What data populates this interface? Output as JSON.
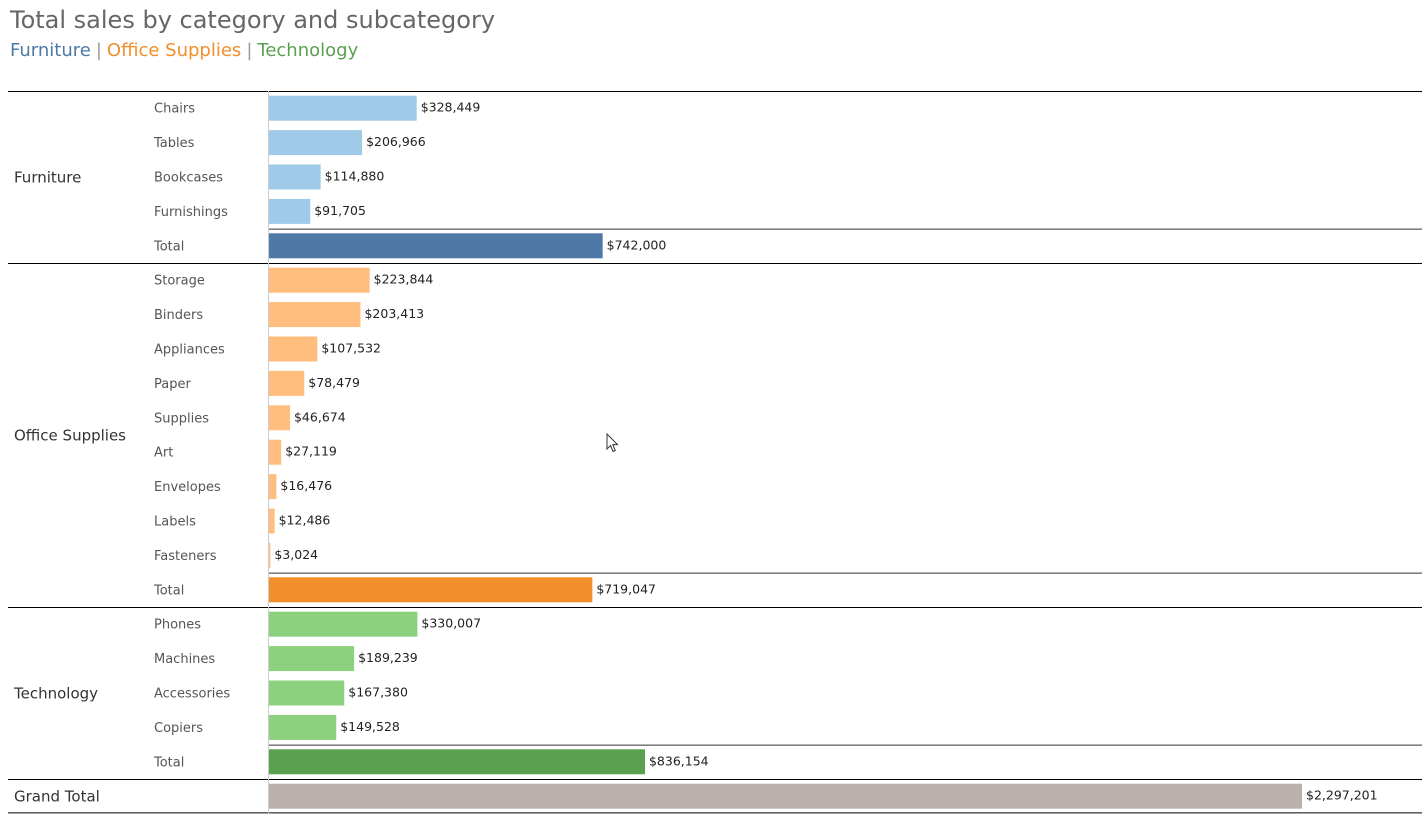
{
  "title": "Total sales by category and subcategory",
  "legend": [
    {
      "label": "Furniture",
      "color": "#4e79a7"
    },
    {
      "label": "Office Supplies",
      "color": "#f28e2b"
    },
    {
      "label": "Technology",
      "color": "#59a14f"
    }
  ],
  "chart_data": {
    "type": "bar",
    "orientation": "horizontal",
    "title": "Total sales by category and subcategory",
    "xlim": [
      0,
      2400000
    ],
    "groups": [
      {
        "category": "Furniture",
        "bar_color": "#a0cbe8",
        "total_color": "#4e79a7",
        "items": [
          {
            "label": "Chairs",
            "value": 328449,
            "value_label": "$328,449"
          },
          {
            "label": "Tables",
            "value": 206966,
            "value_label": "$206,966"
          },
          {
            "label": "Bookcases",
            "value": 114880,
            "value_label": "$114,880"
          },
          {
            "label": "Furnishings",
            "value": 91705,
            "value_label": "$91,705"
          }
        ],
        "total": {
          "label": "Total",
          "value": 742000,
          "value_label": "$742,000"
        }
      },
      {
        "category": "Office Supplies",
        "bar_color": "#ffbe7d",
        "total_color": "#f28e2b",
        "items": [
          {
            "label": "Storage",
            "value": 223844,
            "value_label": "$223,844"
          },
          {
            "label": "Binders",
            "value": 203413,
            "value_label": "$203,413"
          },
          {
            "label": "Appliances",
            "value": 107532,
            "value_label": "$107,532"
          },
          {
            "label": "Paper",
            "value": 78479,
            "value_label": "$78,479"
          },
          {
            "label": "Supplies",
            "value": 46674,
            "value_label": "$46,674"
          },
          {
            "label": "Art",
            "value": 27119,
            "value_label": "$27,119"
          },
          {
            "label": "Envelopes",
            "value": 16476,
            "value_label": "$16,476"
          },
          {
            "label": "Labels",
            "value": 12486,
            "value_label": "$12,486"
          },
          {
            "label": "Fasteners",
            "value": 3024,
            "value_label": "$3,024"
          }
        ],
        "total": {
          "label": "Total",
          "value": 719047,
          "value_label": "$719,047"
        }
      },
      {
        "category": "Technology",
        "bar_color": "#8cd17d",
        "total_color": "#59a14f",
        "items": [
          {
            "label": "Phones",
            "value": 330007,
            "value_label": "$330,007"
          },
          {
            "label": "Machines",
            "value": 189239,
            "value_label": "$189,239"
          },
          {
            "label": "Accessories",
            "value": 167380,
            "value_label": "$167,380"
          },
          {
            "label": "Copiers",
            "value": 149528,
            "value_label": "$149,528"
          }
        ],
        "total": {
          "label": "Total",
          "value": 836154,
          "value_label": "$836,154"
        }
      }
    ],
    "grand_total": {
      "label": "Grand Total",
      "value": 2297201,
      "value_label": "$2,297,201",
      "color": "#bab0ac"
    }
  }
}
